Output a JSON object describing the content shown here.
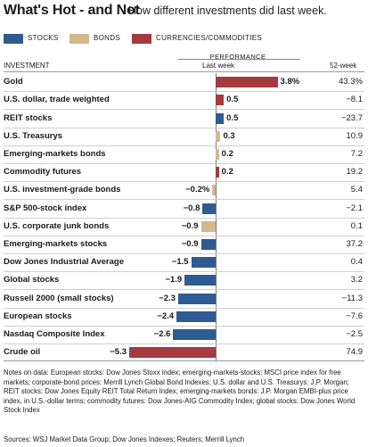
{
  "title": "What's Hot - and Not",
  "subtitle": "How different investments did last week.",
  "legend": [
    {
      "label": "STOCKS",
      "color": "#2e5b92"
    },
    {
      "label": "BONDS",
      "color": "#d3b88c"
    },
    {
      "label": "CURRENCIES/COMMODITIES",
      "color": "#a53a3f"
    }
  ],
  "performance_label": "PERFORMANCE",
  "col_investment": "INVESTMENT",
  "col_lastweek": "Last week",
  "col_52week": "52-week",
  "colors": {
    "stock": "#2e5b92",
    "bond": "#d3b88c",
    "commodity": "#a53a3f"
  },
  "chart_data": {
    "type": "bar",
    "title": "What's Hot - and Not",
    "subtitle": "How different investments did last week.",
    "xlabel": "Last week",
    "series": [
      {
        "name": "Last week",
        "values": [
          3.8,
          0.5,
          0.5,
          0.3,
          0.2,
          0.2,
          -0.2,
          -0.8,
          -0.9,
          -0.9,
          -1.5,
          -1.9,
          -2.3,
          -2.4,
          -2.6,
          -5.3
        ]
      }
    ],
    "categories": [
      "Gold",
      "U.S. dollar, trade weighted",
      "REIT stocks",
      "U.S. Treasurys",
      "Emerging-markets bonds",
      "Commodity futures",
      "U.S. investment-grade bonds",
      "S&P 500-stock index",
      "U.S. corporate junk bonds",
      "Emerging-markets stocks",
      "Dow Jones Industrial Average",
      "Global stocks",
      "Russell 2000 (small stocks)",
      "European stocks",
      "Nasdaq Composite Index",
      "Crude oil"
    ],
    "xlim": [
      -5.3,
      3.8
    ],
    "rows": [
      {
        "name": "Gold",
        "type": "commodity",
        "last_week": 3.8,
        "label": "3.8%",
        "week52": "43.3%"
      },
      {
        "name": "U.S. dollar, trade weighted",
        "type": "commodity",
        "last_week": 0.5,
        "label": "0.5",
        "week52": "−8.1"
      },
      {
        "name": "REIT stocks",
        "type": "stock",
        "last_week": 0.5,
        "label": "0.5",
        "week52": "−23.7"
      },
      {
        "name": "U.S. Treasurys",
        "type": "bond",
        "last_week": 0.3,
        "label": "0.3",
        "week52": "10.9"
      },
      {
        "name": "Emerging-markets bonds",
        "type": "bond",
        "last_week": 0.2,
        "label": "0.2",
        "week52": "7.2"
      },
      {
        "name": "Commodity futures",
        "type": "commodity",
        "last_week": 0.2,
        "label": "0.2",
        "week52": "19.2"
      },
      {
        "name": "U.S. investment-grade bonds",
        "type": "bond",
        "last_week": -0.2,
        "label": "−0.2%",
        "week52": "5.4"
      },
      {
        "name": "S&P 500-stock index",
        "type": "stock",
        "last_week": -0.8,
        "label": "−0.8",
        "week52": "−2.1"
      },
      {
        "name": "U.S. corporate junk bonds",
        "type": "bond",
        "last_week": -0.9,
        "label": "−0.9",
        "week52": "0.1"
      },
      {
        "name": "Emerging-markets stocks",
        "type": "stock",
        "last_week": -0.9,
        "label": "−0.9",
        "week52": "37.2"
      },
      {
        "name": "Dow Jones Industrial Average",
        "type": "stock",
        "last_week": -1.5,
        "label": "−1.5",
        "week52": "0.4"
      },
      {
        "name": "Global stocks",
        "type": "stock",
        "last_week": -1.9,
        "label": "−1.9",
        "week52": "3.2"
      },
      {
        "name": "Russell 2000 (small stocks)",
        "type": "stock",
        "last_week": -2.3,
        "label": "−2.3",
        "week52": "−11.3"
      },
      {
        "name": "European stocks",
        "type": "stock",
        "last_week": -2.4,
        "label": "−2.4",
        "week52": "−7.6"
      },
      {
        "name": "Nasdaq Composite Index",
        "type": "stock",
        "last_week": -2.6,
        "label": "−2.6",
        "week52": "−2.5"
      },
      {
        "name": "Crude oil",
        "type": "commodity",
        "last_week": -5.3,
        "label": "−5.3",
        "week52": "74.9"
      }
    ]
  },
  "notes": "Notes on data: European stocks: Dow Jones Stoxx index; emerging-markets-stocks: MSCI price index for free markets; corporate-bond prices: Merrill Lynch Global Bond Indexes; U.S. dollar and U.S. Treasurys: J.P. Morgan; REIT stocks: Dow Jones Equity REIT Total Return Index; emerging-markets bonds: J.P. Morgan EMBI-plus price index, in U.S.-dollar terms; commodity futures: Dow Jones-AIG Commodity Index; global stocks: Dow Jones World Stock Index",
  "sources": "Sources: WSJ Market Data Group; Dow Jones Indexes; Reuters; Merrill Lynch"
}
